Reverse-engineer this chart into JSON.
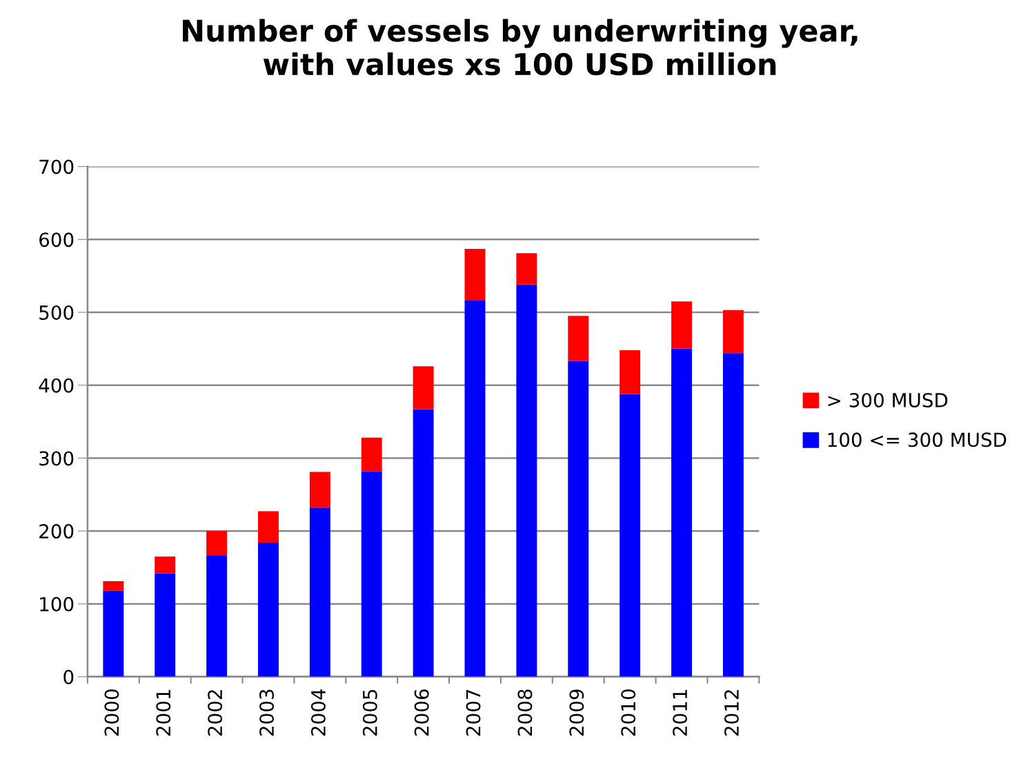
{
  "chart_data": {
    "type": "bar",
    "title": "Number of vessels by underwriting year,\nwith values xs 100 USD million",
    "categories": [
      "2000",
      "2001",
      "2002",
      "2003",
      "2004",
      "2005",
      "2006",
      "2007",
      "2008",
      "2009",
      "2010",
      "2011",
      "2012"
    ],
    "stacked": true,
    "series": [
      {
        "name": "100 <= 300 MUSD",
        "color": "#0000ff",
        "values": [
          118,
          142,
          166,
          184,
          232,
          282,
          367,
          516,
          538,
          433,
          388,
          450,
          444
        ]
      },
      {
        "name": "> 300 MUSD",
        "color": "#ff0000",
        "values": [
          13,
          23,
          34,
          43,
          49,
          46,
          59,
          71,
          43,
          62,
          60,
          65,
          59
        ]
      }
    ],
    "ylim": [
      0,
      700
    ],
    "yticks": [
      0,
      100,
      200,
      300,
      400,
      500,
      600,
      700
    ],
    "grid": "y",
    "legend": "right"
  }
}
